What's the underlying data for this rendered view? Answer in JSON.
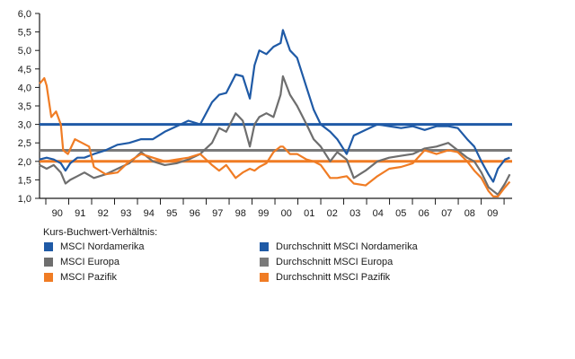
{
  "chart_data": {
    "type": "line",
    "title": "",
    "xlabel": "",
    "ylabel": "",
    "ylim": [
      1.0,
      6.0
    ],
    "xlim": [
      1989.7,
      2009.7
    ],
    "yticks": [
      "1,0",
      "1,5",
      "2,0",
      "2,5",
      "3,0",
      "3,5",
      "4,0",
      "4,5",
      "5,0",
      "5,5",
      "6,0"
    ],
    "ytick_values": [
      1.0,
      1.5,
      2.0,
      2.5,
      3.0,
      3.5,
      4.0,
      4.5,
      5.0,
      5.5,
      6.0
    ],
    "xticks": [
      "90",
      "91",
      "92",
      "93",
      "94",
      "95",
      "96",
      "97",
      "98",
      "99",
      "00",
      "01",
      "02",
      "03",
      "04",
      "05",
      "06",
      "07",
      "08",
      "09"
    ],
    "grid": false,
    "legend_title": "Kurs-Buchwert-Verhältnis:",
    "legend_position": "bottom",
    "series": [
      {
        "name": "MSCI Nordamerika",
        "color": "#1f5aa6",
        "x": [
          1989.7,
          1990.0,
          1990.3,
          1990.6,
          1990.8,
          1991.0,
          1991.3,
          1991.6,
          1992.0,
          1992.5,
          1993.0,
          1993.5,
          1994.0,
          1994.5,
          1995.0,
          1995.5,
          1996.0,
          1996.5,
          1997.0,
          1997.3,
          1997.6,
          1998.0,
          1998.3,
          1998.6,
          1998.8,
          1999.0,
          1999.3,
          1999.6,
          1999.9,
          2000.0,
          2000.3,
          2000.6,
          2001.0,
          2001.3,
          2001.6,
          2002.0,
          2002.3,
          2002.7,
          2003.0,
          2003.5,
          2004.0,
          2004.5,
          2005.0,
          2005.5,
          2006.0,
          2006.5,
          2007.0,
          2007.4,
          2007.8,
          2008.1,
          2008.4,
          2008.7,
          2008.9,
          2009.1,
          2009.4,
          2009.6
        ],
        "values": [
          2.05,
          2.1,
          2.05,
          1.95,
          1.75,
          1.95,
          2.1,
          2.1,
          2.2,
          2.3,
          2.45,
          2.5,
          2.6,
          2.6,
          2.8,
          2.95,
          3.1,
          3.0,
          3.6,
          3.8,
          3.85,
          4.35,
          4.3,
          3.7,
          4.6,
          5.0,
          4.9,
          5.1,
          5.2,
          5.55,
          5.0,
          4.8,
          4.0,
          3.4,
          3.0,
          2.8,
          2.6,
          2.2,
          2.7,
          2.85,
          3.0,
          2.95,
          2.9,
          2.95,
          2.85,
          2.95,
          2.95,
          2.9,
          2.6,
          2.4,
          2.0,
          1.65,
          1.45,
          1.8,
          2.05,
          2.1
        ]
      },
      {
        "name": "MSCI Europa",
        "color": "#6e6e6e",
        "x": [
          1989.7,
          1990.0,
          1990.3,
          1990.6,
          1990.8,
          1991.0,
          1991.3,
          1991.6,
          1992.0,
          1992.5,
          1993.0,
          1993.5,
          1994.0,
          1994.5,
          1995.0,
          1995.5,
          1996.0,
          1996.5,
          1997.0,
          1997.3,
          1997.6,
          1998.0,
          1998.3,
          1998.6,
          1998.8,
          1999.0,
          1999.3,
          1999.6,
          1999.9,
          2000.0,
          2000.3,
          2000.6,
          2001.0,
          2001.3,
          2001.6,
          2002.0,
          2002.3,
          2002.7,
          2003.0,
          2003.5,
          2004.0,
          2004.5,
          2005.0,
          2005.5,
          2006.0,
          2006.5,
          2007.0,
          2007.4,
          2007.8,
          2008.1,
          2008.4,
          2008.7,
          2008.9,
          2009.1,
          2009.4,
          2009.6
        ],
        "values": [
          1.9,
          1.8,
          1.9,
          1.7,
          1.4,
          1.5,
          1.6,
          1.7,
          1.55,
          1.65,
          1.8,
          1.95,
          2.25,
          2.0,
          1.9,
          1.95,
          2.05,
          2.2,
          2.5,
          2.9,
          2.8,
          3.3,
          3.1,
          2.4,
          3.0,
          3.2,
          3.3,
          3.2,
          3.8,
          4.3,
          3.8,
          3.5,
          3.0,
          2.6,
          2.4,
          2.0,
          2.25,
          2.05,
          1.55,
          1.75,
          2.0,
          2.1,
          2.15,
          2.2,
          2.35,
          2.4,
          2.5,
          2.3,
          2.1,
          2.0,
          1.7,
          1.3,
          1.2,
          1.1,
          1.4,
          1.65
        ]
      },
      {
        "name": "MSCI Pazifik",
        "color": "#f07c24",
        "x": [
          1989.7,
          1989.9,
          1990.0,
          1990.2,
          1990.4,
          1990.6,
          1990.7,
          1990.9,
          1991.2,
          1991.5,
          1991.8,
          1992.0,
          1992.5,
          1993.0,
          1993.5,
          1994.0,
          1994.5,
          1995.0,
          1995.5,
          1996.0,
          1996.5,
          1997.0,
          1997.3,
          1997.6,
          1998.0,
          1998.3,
          1998.6,
          1998.8,
          1999.0,
          1999.3,
          1999.6,
          1999.9,
          2000.0,
          2000.3,
          2000.6,
          2001.0,
          2001.3,
          2001.6,
          2002.0,
          2002.3,
          2002.7,
          2003.0,
          2003.5,
          2004.0,
          2004.5,
          2005.0,
          2005.5,
          2006.0,
          2006.5,
          2007.0,
          2007.4,
          2007.8,
          2008.1,
          2008.4,
          2008.7,
          2008.9,
          2009.1,
          2009.4,
          2009.6
        ],
        "values": [
          4.1,
          4.25,
          4.05,
          3.2,
          3.35,
          3.0,
          2.3,
          2.2,
          2.6,
          2.5,
          2.4,
          1.85,
          1.65,
          1.7,
          2.0,
          2.2,
          2.1,
          2.0,
          2.05,
          2.1,
          2.2,
          1.9,
          1.75,
          1.9,
          1.55,
          1.7,
          1.8,
          1.75,
          1.85,
          1.95,
          2.25,
          2.4,
          2.4,
          2.2,
          2.2,
          2.05,
          2.0,
          1.9,
          1.55,
          1.55,
          1.6,
          1.4,
          1.35,
          1.6,
          1.8,
          1.85,
          1.95,
          2.3,
          2.2,
          2.3,
          2.25,
          2.0,
          1.75,
          1.55,
          1.2,
          1.05,
          1.05,
          1.3,
          1.45
        ]
      }
    ],
    "averages": [
      {
        "name": "Durchschnitt MSCI Nordamerika",
        "color": "#1f5aa6",
        "value": 3.0
      },
      {
        "name": "Durchschnitt MSCI Europa",
        "color": "#7a7a7a",
        "value": 2.3
      },
      {
        "name": "Durchschnitt MSCI Pazifik",
        "color": "#f07c24",
        "value": 2.0
      }
    ]
  }
}
